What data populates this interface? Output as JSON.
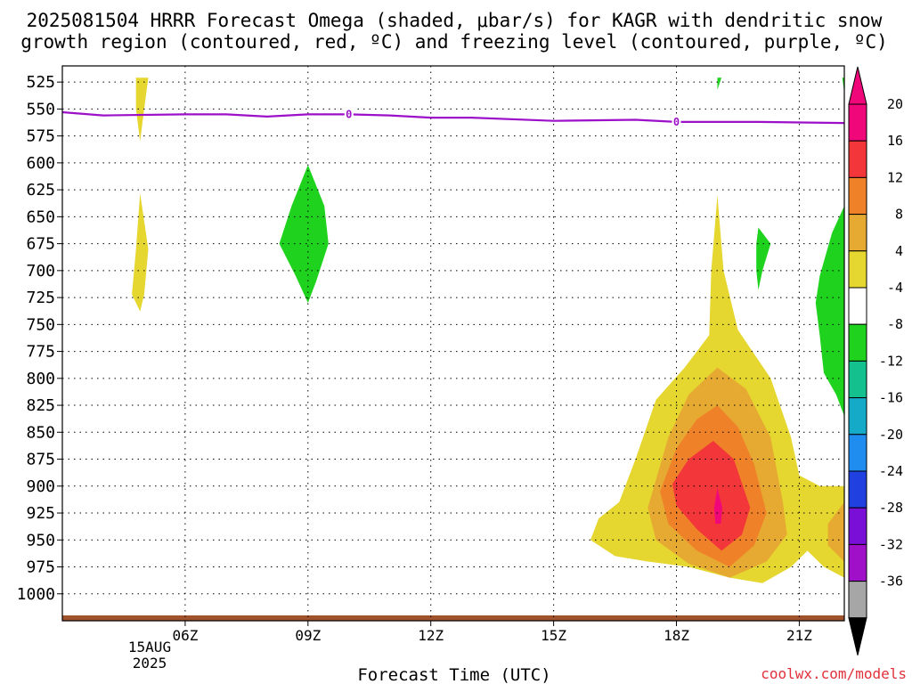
{
  "chart_data": {
    "type": "heatmap",
    "title_line1": "2025081504 HRRR Forecast Omega (shaded, μbar/s) for KAGR with dendritic snow",
    "title_line2": "growth region (contoured, red, ºC) and freezing level (contoured, purple, ºC)",
    "xlabel": "Forecast Time (UTC)",
    "credit": "coolwx.com/models",
    "y_ticks": [
      "525",
      "550",
      "575",
      "600",
      "625",
      "650",
      "675",
      "700",
      "725",
      "750",
      "775",
      "800",
      "825",
      "850",
      "875",
      "900",
      "925",
      "950",
      "975",
      "1000"
    ],
    "x_ticks": [
      "06Z",
      "09Z",
      "12Z",
      "15Z",
      "18Z",
      "21Z"
    ],
    "date_label_line1": "15AUG",
    "date_label_line2": "2025",
    "y_axis": {
      "quantity": "pressure (hPa)",
      "range": [
        1025,
        510
      ],
      "reversed": true
    },
    "x_axis": {
      "range_hours_utc": [
        3.0,
        22.1
      ]
    },
    "colorbar": {
      "labels": [
        "20",
        "16",
        "12",
        "8",
        "4",
        "-4",
        "-8",
        "-12",
        "-16",
        "-20",
        "-24",
        "-28",
        "-32",
        "-36"
      ],
      "colors": [
        "#f0087a",
        "#f2363a",
        "#ef8228",
        "#e6aa32",
        "#e5d630",
        "#ffffff",
        "#1ed21e",
        "#13c08e",
        "#14aac8",
        "#1f8cf0",
        "#2040e0",
        "#7a10d8",
        "#a010c8",
        "#a6a6a6"
      ],
      "top_arrow_color": "#f0087a",
      "bottom_arrow_color": "#000000"
    },
    "freezing_level": {
      "label": "0",
      "color": "#9b10c8",
      "label_times": [
        10.0,
        18.0
      ],
      "points": [
        [
          3.0,
          553
        ],
        [
          4.0,
          556
        ],
        [
          6.0,
          555
        ],
        [
          7.0,
          555
        ],
        [
          8.0,
          557
        ],
        [
          9.0,
          555
        ],
        [
          10.0,
          555
        ],
        [
          11.0,
          556
        ],
        [
          12.0,
          558
        ],
        [
          13.0,
          558
        ],
        [
          15.0,
          561
        ],
        [
          17.0,
          560
        ],
        [
          18.0,
          562
        ],
        [
          19.0,
          562
        ],
        [
          20.0,
          562
        ],
        [
          22.1,
          563
        ]
      ]
    },
    "omega_regions": [
      {
        "level": 4,
        "color": "#e5d630",
        "points": [
          [
            4.8,
            521
          ],
          [
            5.1,
            521
          ],
          [
            5.0,
            550
          ],
          [
            4.9,
            580
          ],
          [
            4.8,
            550
          ]
        ]
      },
      {
        "level": 4,
        "color": "#e5d630",
        "points": [
          [
            4.9,
            628
          ],
          [
            5.1,
            680
          ],
          [
            5.0,
            722
          ],
          [
            4.9,
            738
          ],
          [
            4.7,
            722
          ],
          [
            4.8,
            680
          ]
        ]
      },
      {
        "level": 4,
        "color": "#e5d630",
        "points": [
          [
            19.0,
            630
          ],
          [
            19.15,
            700
          ],
          [
            19.5,
            755
          ],
          [
            20.3,
            800
          ],
          [
            20.8,
            855
          ],
          [
            21.0,
            890
          ],
          [
            21.5,
            900
          ],
          [
            22.1,
            900
          ],
          [
            22.1,
            985
          ],
          [
            21.6,
            975
          ],
          [
            21.2,
            960
          ],
          [
            20.8,
            975
          ],
          [
            20.1,
            990
          ],
          [
            19.3,
            985
          ],
          [
            18.3,
            975
          ],
          [
            17.3,
            970
          ],
          [
            16.5,
            965
          ],
          [
            15.9,
            950
          ],
          [
            16.1,
            930
          ],
          [
            16.6,
            915
          ],
          [
            17.0,
            875
          ],
          [
            17.5,
            820
          ],
          [
            18.2,
            790
          ],
          [
            18.8,
            760
          ],
          [
            18.85,
            700
          ]
        ]
      },
      {
        "level": 8,
        "color": "#e6aa32",
        "points": [
          [
            17.3,
            920
          ],
          [
            17.8,
            855
          ],
          [
            18.3,
            815
          ],
          [
            19.0,
            790
          ],
          [
            19.7,
            810
          ],
          [
            20.3,
            855
          ],
          [
            20.6,
            915
          ],
          [
            20.7,
            945
          ],
          [
            20.2,
            970
          ],
          [
            19.3,
            985
          ],
          [
            18.3,
            972
          ],
          [
            17.5,
            950
          ]
        ]
      },
      {
        "level": 8,
        "color": "#e6aa32",
        "points": [
          [
            22.1,
            915
          ],
          [
            21.7,
            935
          ],
          [
            21.7,
            955
          ],
          [
            22.1,
            970
          ]
        ]
      },
      {
        "level": 12,
        "color": "#ef8228",
        "points": [
          [
            17.6,
            905
          ],
          [
            18.0,
            865
          ],
          [
            18.5,
            838
          ],
          [
            19.0,
            825
          ],
          [
            19.5,
            845
          ],
          [
            19.9,
            880
          ],
          [
            20.2,
            925
          ],
          [
            19.9,
            955
          ],
          [
            19.3,
            975
          ],
          [
            18.5,
            960
          ],
          [
            17.8,
            935
          ]
        ]
      },
      {
        "level": 16,
        "color": "#f2363a",
        "points": [
          [
            17.9,
            898
          ],
          [
            18.3,
            875
          ],
          [
            18.9,
            858
          ],
          [
            19.4,
            875
          ],
          [
            19.8,
            920
          ],
          [
            19.6,
            945
          ],
          [
            19.1,
            960
          ],
          [
            18.5,
            940
          ],
          [
            18.0,
            918
          ]
        ]
      },
      {
        "level": 20,
        "color": "#f0087a",
        "points": [
          [
            19.0,
            902
          ],
          [
            19.12,
            920
          ],
          [
            19.08,
            935
          ],
          [
            18.95,
            935
          ],
          [
            18.92,
            920
          ]
        ]
      },
      {
        "level": -8,
        "color": "#1ed21e",
        "points": [
          [
            19.0,
            521
          ],
          [
            19.1,
            521
          ],
          [
            19.0,
            532
          ]
        ]
      },
      {
        "level": -8,
        "color": "#1ed21e",
        "points": [
          [
            22.05,
            521
          ],
          [
            22.1,
            521
          ],
          [
            22.1,
            535
          ]
        ]
      },
      {
        "level": -8,
        "color": "#1ed21e",
        "points": [
          [
            9.0,
            602
          ],
          [
            9.4,
            640
          ],
          [
            9.5,
            675
          ],
          [
            9.2,
            710
          ],
          [
            9.0,
            730
          ],
          [
            8.7,
            705
          ],
          [
            8.3,
            675
          ],
          [
            8.6,
            640
          ]
        ]
      },
      {
        "level": -8,
        "color": "#1ed21e",
        "points": [
          [
            20.0,
            660
          ],
          [
            20.3,
            675
          ],
          [
            20.1,
            700
          ],
          [
            20.0,
            718
          ],
          [
            19.95,
            700
          ],
          [
            19.95,
            675
          ]
        ]
      },
      {
        "level": -8,
        "color": "#1ed21e",
        "points": [
          [
            22.1,
            640
          ],
          [
            22.1,
            835
          ],
          [
            21.9,
            815
          ],
          [
            21.6,
            795
          ],
          [
            21.5,
            760
          ],
          [
            21.4,
            730
          ],
          [
            21.5,
            705
          ],
          [
            21.8,
            665
          ]
        ]
      }
    ],
    "surface_ground": {
      "color": "#a0522d",
      "pressure_top": 1020
    }
  }
}
